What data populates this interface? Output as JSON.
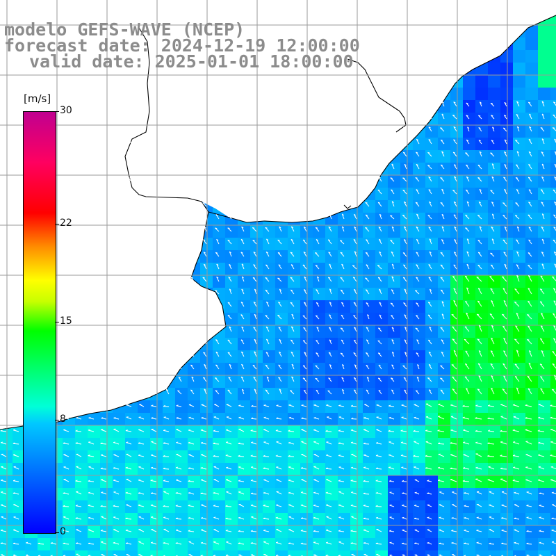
{
  "title": {
    "line1": "modelo GEFS-WAVE (NCEP)",
    "line2": "forecast date: 2024-12-19 12:00:00",
    "line3": "valid date: 2025-01-01 18:00:00"
  },
  "colorbar": {
    "unit": "[m/s]",
    "ticks": [
      {
        "label": "30",
        "value": 30
      },
      {
        "label": "22",
        "value": 22
      },
      {
        "label": "15",
        "value": 15
      },
      {
        "label": "8",
        "value": 8
      },
      {
        "label": "0",
        "value": 0
      }
    ],
    "min": 0,
    "max": 30
  },
  "map": {
    "variable": "wind speed and direction",
    "land_color": "#ffffff",
    "coast_color": "#000000",
    "grid_color": "#9a9a9a"
  }
}
